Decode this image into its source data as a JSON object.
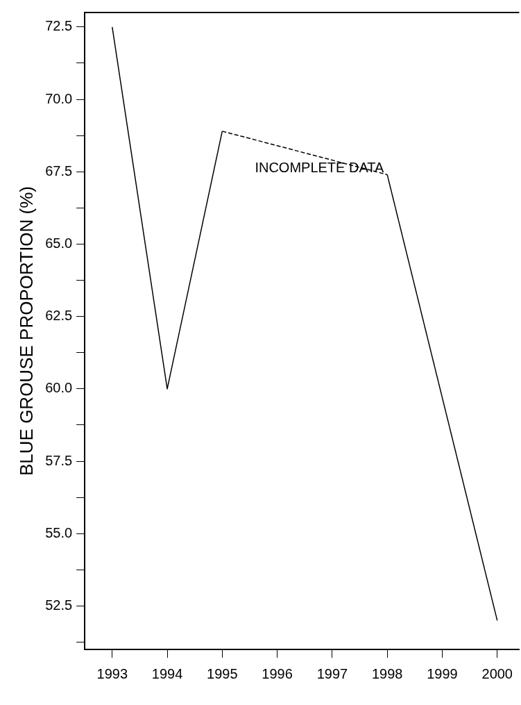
{
  "chart_data": {
    "type": "line",
    "ylabel": "BLUE GROUSE PROPORTION (%)",
    "series": [
      {
        "color": "#000000",
        "x": [
          1993,
          1994,
          1995
        ],
        "values": [
          72.5,
          60.0,
          68.9
        ]
      },
      {
        "color": "#000000",
        "x": [
          1995,
          1998
        ],
        "values": [
          68.9,
          67.4
        ],
        "line_style": "dashed"
      },
      {
        "color": "#000000",
        "x": [
          1998,
          2000
        ],
        "values": [
          67.4,
          52.0
        ]
      }
    ],
    "xlim": [
      1992.5,
      2000.4
    ],
    "xticks": [
      1993,
      1994,
      1995,
      1996,
      1997,
      1998,
      1999,
      2000
    ],
    "ylim": [
      51.0,
      73.0
    ],
    "yticks": [
      {
        "value": 51.25,
        "label": null
      },
      {
        "value": 52.5,
        "label": "52.5"
      },
      {
        "value": 53.75,
        "label": null
      },
      {
        "value": 55,
        "label": "55.0"
      },
      {
        "value": 56.25,
        "label": null
      },
      {
        "value": 57.5,
        "label": "57.5"
      },
      {
        "value": 58.75,
        "label": null
      },
      {
        "value": 60,
        "label": "60.0"
      },
      {
        "value": 61.25,
        "label": null
      },
      {
        "value": 62.5,
        "label": "62.5"
      },
      {
        "value": 63.75,
        "label": null
      },
      {
        "value": 65,
        "label": "65.0"
      },
      {
        "value": 66.25,
        "label": null
      },
      {
        "value": 67.5,
        "label": "67.5"
      },
      {
        "value": 68.75,
        "label": null
      },
      {
        "value": 70,
        "label": "70.0"
      },
      {
        "value": 71.25,
        "label": null
      },
      {
        "value": 72.5,
        "label": "72.5"
      }
    ],
    "annotations": [
      "INCOMPLETE DATA"
    ],
    "grid": false,
    "legend": false,
    "marker": "none",
    "line_style": "solid"
  }
}
